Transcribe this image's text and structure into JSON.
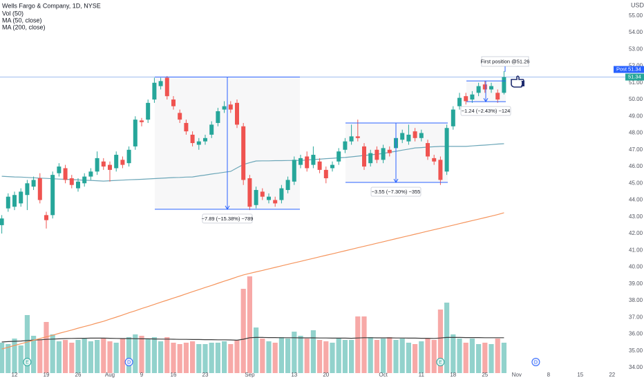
{
  "chart_data": {
    "type": "candlestick",
    "title": "Wells Fargo & Company, 1D, NYSE",
    "currency": "USD",
    "up_color": "#26a69a",
    "down_color": "#ef5350",
    "volume_up_color": "#92d2cc",
    "volume_down_color": "#f7a9a7",
    "ylim": [
      33.67,
      55.94
    ],
    "y2lim": [
      0,
      270
    ],
    "grid": false,
    "yticks": [
      {
        "value": 34,
        "label": "34.00"
      },
      {
        "value": 35,
        "label": "35.00"
      },
      {
        "value": 36,
        "label": "36.00"
      },
      {
        "value": 37,
        "label": "37.00"
      },
      {
        "value": 38,
        "label": "38.00"
      },
      {
        "value": 39,
        "label": "39.00"
      },
      {
        "value": 40,
        "label": "40.00"
      },
      {
        "value": 41,
        "label": "41.00"
      },
      {
        "value": 42,
        "label": "42.00"
      },
      {
        "value": 43,
        "label": "43.00"
      },
      {
        "value": 44,
        "label": "44.00"
      },
      {
        "value": 45,
        "label": "45.00"
      },
      {
        "value": 46,
        "label": "46.00"
      },
      {
        "value": 47,
        "label": "47.00"
      },
      {
        "value": 48,
        "label": "48.00"
      },
      {
        "value": 49,
        "label": "49.00"
      },
      {
        "value": 50,
        "label": "50.00"
      },
      {
        "value": 51,
        "label": "51.00"
      },
      {
        "value": 52,
        "label": "52.00"
      },
      {
        "value": 53,
        "label": "53.00"
      },
      {
        "value": 54,
        "label": "54.00"
      },
      {
        "value": 55,
        "label": "55.00"
      }
    ],
    "categories": [
      null,
      null,
      "12",
      null,
      null,
      null,
      null,
      "19",
      null,
      null,
      null,
      null,
      "26",
      null,
      null,
      null,
      null,
      "Aug",
      null,
      null,
      null,
      null,
      "9",
      null,
      null,
      null,
      null,
      "16",
      null,
      null,
      null,
      null,
      "23",
      null,
      null,
      null,
      null,
      null,
      null,
      "Sep",
      null,
      null,
      null,
      null,
      null,
      null,
      "13",
      null,
      null,
      null,
      null,
      "20",
      null,
      null,
      null,
      null,
      null,
      null,
      null,
      null,
      "Oct",
      null,
      null,
      null,
      null,
      null,
      "11",
      null,
      null,
      null,
      null,
      "18",
      null,
      null,
      null,
      null,
      "25",
      null,
      null,
      null,
      null,
      "Nov",
      null,
      null,
      null,
      null,
      "8",
      null,
      null,
      null,
      null,
      "15",
      null,
      null,
      null,
      null,
      "22",
      null,
      null
    ],
    "open": [
      42.5,
      43.5,
      43.6,
      43.8,
      44.3,
      44.8,
      45.3,
      43.1,
      43.1,
      45.6,
      45.9,
      45.3,
      44.7,
      45.0,
      45.4,
      45.7,
      46.3,
      46.1,
      45.9,
      46.4,
      46.2,
      47.2,
      48.75,
      48.8,
      50.0,
      50.8,
      51.3,
      50.0,
      49.2,
      48.6,
      47.9,
      47.3,
      47.5,
      47.9,
      48.6,
      49.4,
      49.7,
      49.8,
      48.4,
      45.3,
      43.7,
      44.5,
      44.0,
      44.0,
      44.0,
      44.6,
      45.1,
      46.1,
      46.6,
      46.1,
      46.3,
      45.8,
      45.9,
      46.3,
      47.0,
      47.5,
      47.8,
      47.2,
      46.2,
      47.0,
      46.4,
      47.0,
      47.1,
      47.6,
      47.5,
      48.1,
      47.7,
      47.4,
      46.5,
      46.4,
      45.7,
      48.4,
      49.6,
      50.2,
      50.0,
      50.4,
      50.9,
      50.6,
      50.4,
      50.4,
      null,
      null,
      null,
      null,
      null,
      null,
      null,
      null,
      null,
      null,
      null,
      null,
      null,
      null,
      null,
      null,
      null,
      null,
      null
    ],
    "high": [
      43.1,
      44.4,
      44.5,
      44.7,
      45.2,
      45.4,
      45.6,
      43.3,
      45.7,
      46.2,
      46.1,
      45.5,
      45.3,
      45.6,
      45.9,
      46.9,
      46.5,
      46.3,
      46.9,
      46.6,
      47.2,
      49.0,
      48.9,
      50.0,
      51.3,
      51.3,
      51.4,
      50.2,
      49.4,
      48.8,
      48.1,
      47.7,
      47.9,
      48.7,
      49.5,
      49.9,
      49.9,
      50.0,
      48.6,
      45.5,
      44.8,
      44.7,
      44.4,
      44.2,
      44.9,
      45.4,
      46.6,
      46.7,
      46.9,
      47.2,
      46.5,
      46.0,
      46.3,
      47.1,
      47.7,
      48.5,
      48.8,
      47.4,
      47.0,
      47.2,
      47.3,
      47.2,
      47.9,
      48.2,
      48.5,
      48.3,
      48.2,
      47.6,
      46.7,
      46.6,
      48.5,
      49.6,
      50.4,
      50.4,
      50.5,
      51.0,
      51.1,
      51.0,
      50.6,
      51.7,
      null,
      null,
      null,
      null,
      null,
      null,
      null,
      null,
      null,
      null,
      null,
      null,
      null,
      null,
      null,
      null,
      null,
      null,
      null
    ],
    "low": [
      42.0,
      43.3,
      43.4,
      43.6,
      43.4,
      44.6,
      43.8,
      42.3,
      42.9,
      45.4,
      45.0,
      44.7,
      44.5,
      44.8,
      45.2,
      45.5,
      45.8,
      45.1,
      45.7,
      45.9,
      46.0,
      47.0,
      48.4,
      48.6,
      49.8,
      50.6,
      50.0,
      49.4,
      48.6,
      47.9,
      47.2,
      47.0,
      47.3,
      47.7,
      48.4,
      49.2,
      49.2,
      48.3,
      44.9,
      43.4,
      43.5,
      44.0,
      43.8,
      43.6,
      43.8,
      44.4,
      44.9,
      45.9,
      45.7,
      45.9,
      45.6,
      45.0,
      45.7,
      46.1,
      46.8,
      47.3,
      47.5,
      45.8,
      46.0,
      46.2,
      46.2,
      46.6,
      46.9,
      47.4,
      47.3,
      47.5,
      47.5,
      46.4,
      46.1,
      44.9,
      45.5,
      48.2,
      49.4,
      49.7,
      49.8,
      50.2,
      50.4,
      50.4,
      49.8,
      50.3,
      null,
      null,
      null,
      null,
      null,
      null,
      null,
      null,
      null,
      null,
      null,
      null,
      null,
      null,
      null,
      null,
      null,
      null,
      null
    ],
    "close": [
      42.9,
      44.2,
      44.3,
      44.5,
      45.0,
      45.2,
      44.0,
      42.8,
      45.5,
      46.0,
      45.2,
      44.9,
      45.1,
      45.4,
      45.7,
      46.5,
      46.0,
      45.8,
      46.7,
      46.1,
      47.0,
      48.8,
      48.65,
      49.8,
      51.0,
      51.1,
      50.2,
      49.6,
      48.8,
      48.1,
      47.4,
      47.5,
      47.7,
      48.5,
      49.3,
      49.6,
      49.4,
      48.5,
      45.2,
      43.6,
      44.6,
      44.2,
      44.2,
      43.8,
      44.7,
      45.2,
      46.4,
      46.5,
      45.9,
      46.7,
      45.8,
      45.3,
      46.1,
      46.9,
      47.5,
      47.8,
      47.7,
      46.0,
      46.8,
      46.4,
      47.1,
      46.8,
      47.7,
      48.0,
      47.9,
      47.7,
      48.0,
      46.6,
      46.3,
      45.2,
      48.3,
      49.4,
      50.1,
      49.9,
      50.3,
      50.8,
      50.6,
      50.8,
      50.0,
      51.34,
      null,
      null,
      null,
      null,
      null,
      null,
      null,
      null,
      null,
      null,
      null,
      null,
      null,
      null,
      null,
      null,
      null,
      null,
      null
    ],
    "series": [
      {
        "name": "Vol (50)",
        "axis": "y2",
        "kind": "volume",
        "ma_color": "#3a3a3a",
        "values": [
          22,
          21,
          25,
          20,
          42,
          27,
          24,
          37,
          28,
          23,
          24,
          22,
          24,
          25,
          23,
          24,
          25,
          23,
          22,
          25,
          26,
          28,
          27,
          25,
          26,
          23,
          26,
          22,
          21,
          22,
          23,
          21,
          21,
          22,
          22,
          23,
          21,
          24,
          61,
          70,
          33,
          25,
          23,
          22,
          26,
          25,
          30,
          27,
          25,
          31,
          24,
          23,
          22,
          25,
          24,
          24,
          41,
          41,
          26,
          24,
          25,
          26,
          24,
          25,
          22,
          21,
          23,
          25,
          24,
          46,
          51,
          28,
          25,
          22,
          25,
          21,
          22,
          21,
          25,
          22,
          null,
          null,
          null,
          null,
          null,
          null,
          null,
          null,
          null,
          null,
          null,
          null,
          null,
          null,
          null,
          null,
          null,
          null,
          null
        ],
        "ma_values": [
          22.5,
          22.8,
          23.0,
          23.2,
          23.6,
          23.9,
          24.1,
          24.4,
          24.6,
          24.8,
          25.0,
          25.1,
          25.2,
          25.2,
          25.3,
          25.3,
          25.3,
          25.2,
          25.1,
          25.0,
          25.0,
          24.9,
          24.8,
          24.8,
          24.7,
          24.6,
          24.6,
          24.5,
          24.4,
          24.4,
          24.3,
          24.3,
          24.2,
          24.2,
          24.1,
          24.1,
          24.0,
          23.8,
          24.5,
          25.6,
          25.8,
          25.8,
          25.7,
          25.7,
          25.6,
          25.6,
          25.6,
          25.5,
          25.5,
          25.5,
          25.4,
          25.4,
          25.3,
          25.3,
          25.3,
          25.2,
          25.4,
          25.6,
          25.6,
          25.5,
          25.5,
          25.5,
          25.4,
          25.4,
          25.3,
          25.3,
          25.2,
          25.2,
          25.1,
          25.4,
          25.8,
          25.8,
          25.8,
          25.7,
          25.7,
          25.7,
          25.6,
          25.6,
          25.6,
          25.6,
          null,
          null,
          null,
          null,
          null,
          null,
          null,
          null,
          null,
          null,
          null,
          null,
          null,
          null,
          null,
          null,
          null,
          null,
          null
        ]
      },
      {
        "name": "MA (50, close)",
        "kind": "line",
        "color": "#6ba6b8",
        "values": [
          45.42,
          45.4,
          45.38,
          45.37,
          45.35,
          45.33,
          45.31,
          45.29,
          45.27,
          45.25,
          45.24,
          45.22,
          45.2,
          45.18,
          45.17,
          45.15,
          45.13,
          45.15,
          45.17,
          45.19,
          45.21,
          45.22,
          45.24,
          45.26,
          45.28,
          45.3,
          45.32,
          45.34,
          45.35,
          45.37,
          45.38,
          45.44,
          45.49,
          45.55,
          45.6,
          45.66,
          45.71,
          45.92,
          46.12,
          46.23,
          46.33,
          46.34,
          46.34,
          46.35,
          46.35,
          46.36,
          46.36,
          46.37,
          46.39,
          46.42,
          46.44,
          46.47,
          46.49,
          46.52,
          46.54,
          46.58,
          46.62,
          46.66,
          46.7,
          46.74,
          46.78,
          46.85,
          46.91,
          46.98,
          47.04,
          47.11,
          47.13,
          47.16,
          47.18,
          47.2,
          47.2,
          47.2,
          47.2,
          47.2,
          47.23,
          47.26,
          47.28,
          47.31,
          47.34,
          47.36,
          null,
          null,
          null,
          null,
          null,
          null,
          null,
          null,
          null,
          null,
          null,
          null,
          null,
          null,
          null,
          null,
          null,
          null,
          null
        ]
      },
      {
        "name": "MA (200, close)",
        "kind": "line",
        "color": "#f5945c",
        "values": [
          35.11,
          35.21,
          35.32,
          35.42,
          35.52,
          35.63,
          35.73,
          35.83,
          35.93,
          36.04,
          36.14,
          36.24,
          36.35,
          36.45,
          36.55,
          36.66,
          36.76,
          36.89,
          37.01,
          37.14,
          37.27,
          37.39,
          37.52,
          37.64,
          37.77,
          37.9,
          38.02,
          38.15,
          38.27,
          38.4,
          38.53,
          38.65,
          38.78,
          38.9,
          39.03,
          39.16,
          39.28,
          39.41,
          39.53,
          39.62,
          39.71,
          39.8,
          39.89,
          39.98,
          40.07,
          40.16,
          40.25,
          40.34,
          40.43,
          40.52,
          40.61,
          40.7,
          40.79,
          40.88,
          40.97,
          41.06,
          41.15,
          41.24,
          41.33,
          41.42,
          41.51,
          41.6,
          41.69,
          41.78,
          41.87,
          41.96,
          42.05,
          42.14,
          42.23,
          42.32,
          42.41,
          42.5,
          42.59,
          42.68,
          42.77,
          42.86,
          42.95,
          43.04,
          43.13,
          43.24,
          null,
          null,
          null,
          null,
          null,
          null,
          null,
          null,
          null,
          null,
          null,
          null,
          null,
          null,
          null,
          null,
          null,
          null,
          null
        ]
      }
    ],
    "measures": [
      {
        "top": 51.34,
        "bottom": 43.45,
        "label": "−7.89 (−15.38%) −789"
      },
      {
        "top": 48.6,
        "bottom": 45.05,
        "label": "−3.55 (−7.30%) −355"
      },
      {
        "top": 51.11,
        "bottom": 49.87,
        "label": "−1.24 (−2.43%) −124"
      }
    ],
    "note": "First position @51.26",
    "last_price": 51.34,
    "post_label": "Post",
    "post_price": 51.34,
    "events": [
      {
        "label": "E"
      },
      {
        "label": "D"
      },
      {
        "label": "E"
      },
      {
        "label": "D"
      }
    ]
  }
}
